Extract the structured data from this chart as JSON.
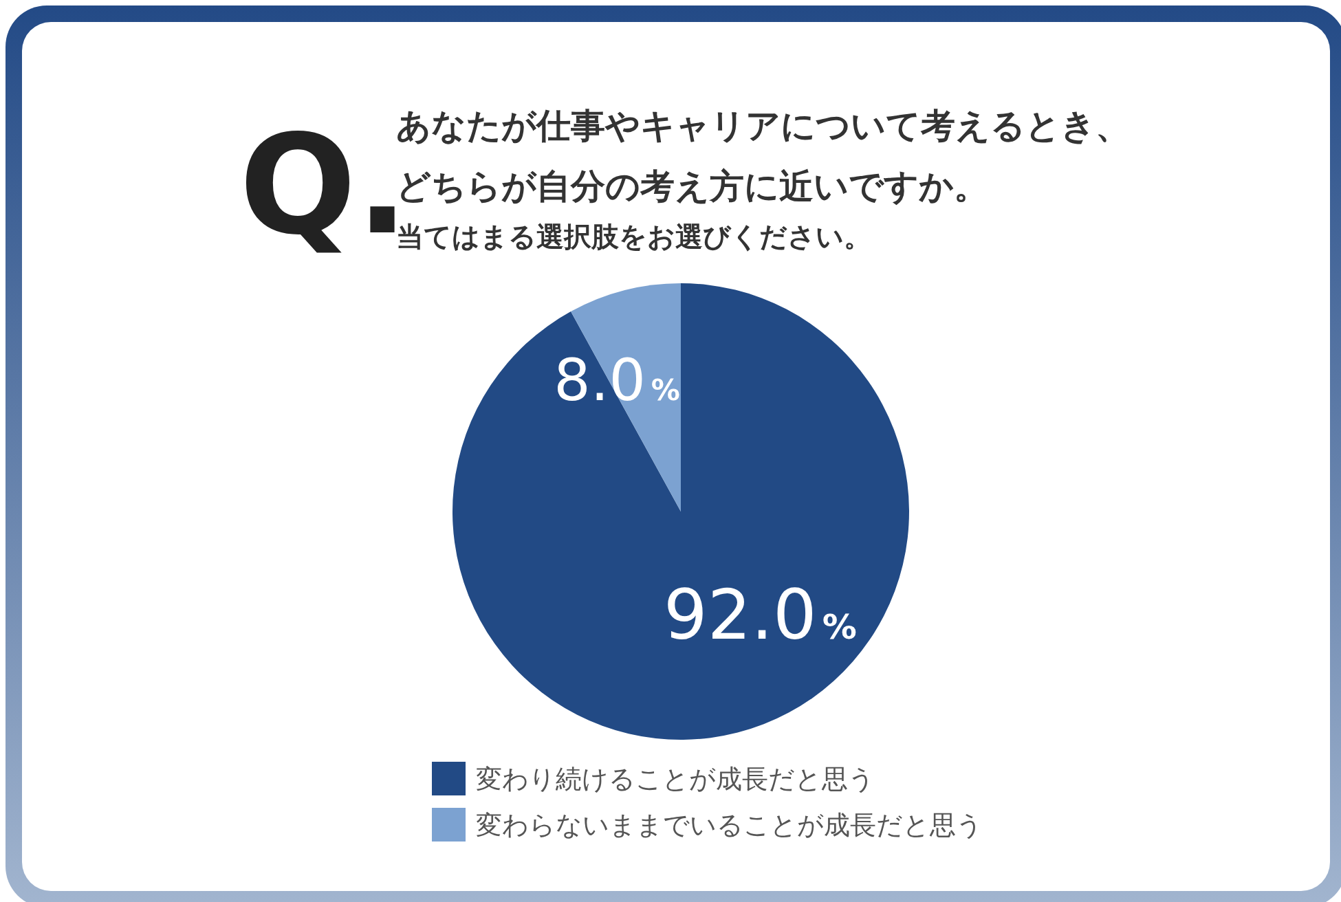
{
  "chart_data": {
    "type": "pie",
    "title": "あなたが仕事やキャリアについて考えるとき、どちらが自分の考え方に近いですか。",
    "subtitle": "当てはまる選択肢をお選びください。",
    "annotations": [
      "Q."
    ],
    "categories": [
      "変わり続けることが成長だと思う",
      "変わらないままでいることが成長だと思う"
    ],
    "values": [
      92.0,
      8.0
    ],
    "colors": [
      "#224a85",
      "#7ca2d1"
    ],
    "value_labels": [
      "92.0%",
      "8.0%"
    ],
    "legend": "bottom"
  }
}
